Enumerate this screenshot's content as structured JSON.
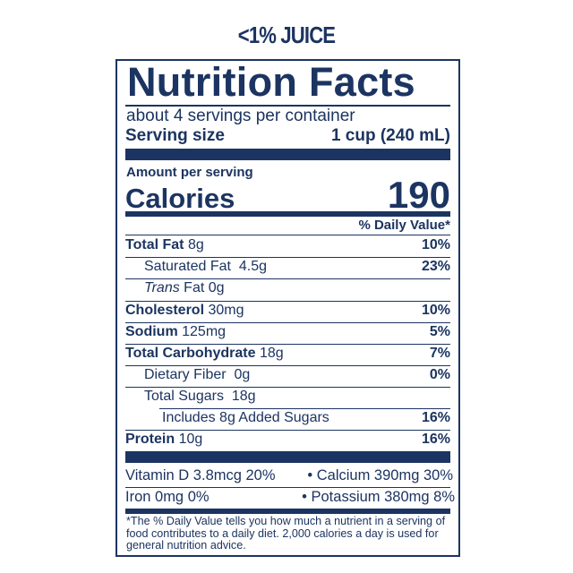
{
  "header": {
    "tag": "<1% JUICE"
  },
  "label": {
    "title": "Nutrition Facts",
    "servings_per_container": "about 4 servings per container",
    "serving_size_label": "Serving size",
    "serving_size_value": "1 cup (240 mL)",
    "amount_per_serving": "Amount per serving",
    "calories_label": "Calories",
    "calories_value": "190",
    "daily_value_header": "% Daily Value*",
    "nutrients": [
      {
        "name": "Total Fat",
        "amount": "8g",
        "dv": "10%"
      },
      {
        "name": "Saturated Fat",
        "amount": "4.5g",
        "dv": "23%"
      },
      {
        "name": "Trans",
        "name_suffix": "Fat",
        "amount": "0g",
        "dv": ""
      },
      {
        "name": "Cholesterol",
        "amount": "30mg",
        "dv": "10%"
      },
      {
        "name": "Sodium",
        "amount": "125mg",
        "dv": "5%"
      },
      {
        "name": "Total Carbohydrate",
        "amount": "18g",
        "dv": "7%"
      },
      {
        "name": "Dietary Fiber",
        "amount": "0g",
        "dv": "0%"
      },
      {
        "name": "Total Sugars",
        "amount": "18g",
        "dv": ""
      },
      {
        "name": "Includes 8g Added Sugars",
        "amount": "",
        "dv": "16%"
      },
      {
        "name": "Protein",
        "amount": "10g",
        "dv": "16%"
      }
    ],
    "vitamins": [
      {
        "left": "Vitamin D 3.8mcg 20%",
        "right": "• Calcium 390mg 30%"
      },
      {
        "left": "Iron 0mg 0%",
        "right": "• Potassium 380mg 8%"
      }
    ],
    "footnote": "*The % Daily Value tells you how much a nutrient in a serving of food contributes to a daily diet. 2,000 calories a day is used for general nutrition advice."
  },
  "colors": {
    "ink": "#1c3461"
  }
}
